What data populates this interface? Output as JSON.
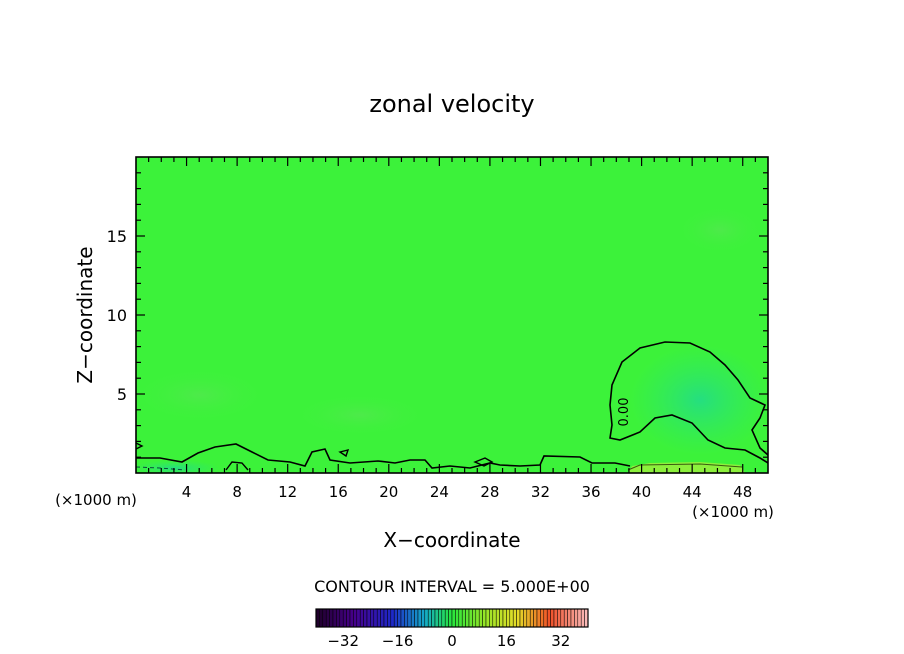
{
  "chart_data": {
    "type": "heatmap",
    "title": "zonal velocity",
    "xlabel": "X−coordinate",
    "ylabel": "Z−coordinate",
    "x_unit_left": "(×1000 m)",
    "x_unit_right": "(×1000 m)",
    "xlim": [
      0,
      50
    ],
    "ylim": [
      0,
      20
    ],
    "x_ticks": [
      4,
      8,
      12,
      16,
      20,
      24,
      28,
      32,
      36,
      40,
      44,
      48
    ],
    "x_tick_labels": [
      "4",
      "8",
      "12",
      "16",
      "20",
      "24",
      "28",
      "32",
      "36",
      "40",
      "44",
      "48"
    ],
    "y_ticks": [
      5,
      10,
      15
    ],
    "y_tick_labels": [
      "5",
      "10",
      "15"
    ],
    "contour_label": "0.00",
    "contour_interval_text": "CONTOUR INTERVAL = 5.000E+00",
    "colorbar": {
      "range": [
        -40,
        40
      ],
      "ticks": [
        -32,
        -16,
        0,
        16,
        32
      ],
      "tick_labels": [
        "−32",
        "−16",
        "0",
        "16",
        "32"
      ]
    },
    "field_color": "#3cf23a",
    "negative_region_color": "#2ee86a",
    "positive_region_color": "#8cf03c"
  }
}
